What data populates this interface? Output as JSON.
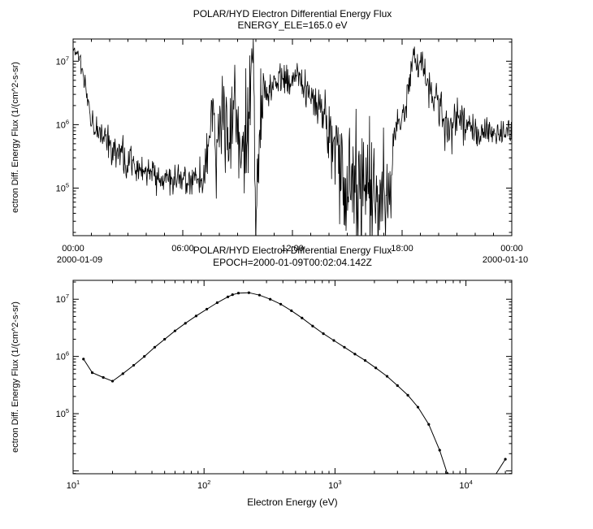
{
  "window": {
    "background": "#ffffff",
    "foreground": "#000000"
  },
  "chart_data": [
    {
      "type": "line",
      "id": "flux-time-series",
      "title": "POLAR/HYD  Electron Differential Energy Flux",
      "subtitle": "ENERGY_ELE=165.0 eV",
      "ylabel": "ectron Diff. Energy Flux (1/(cm^2-s-sr)",
      "x_axis": {
        "type": "time",
        "range_hours": [
          0,
          24
        ],
        "major_tick_hours": [
          0,
          6,
          12,
          18,
          24
        ],
        "minor_tick_step_hours": 1,
        "tick_labels": [
          "00:00",
          "06:00",
          "12:00",
          "18:00",
          "00:00"
        ],
        "date_labels": [
          {
            "text": "2000-01-09",
            "at_hour": 0
          },
          {
            "text": "2000-01-10",
            "at_hour": 24
          }
        ]
      },
      "y_axis": {
        "type": "log",
        "log10_range": [
          4.25,
          7.35
        ],
        "labeled_exponents": [
          5,
          6,
          7
        ]
      },
      "line_color": "#000000",
      "noise_seed": 20000109,
      "samples": 880,
      "keypoints_t_flux_sigma": [
        [
          0.0,
          15000000.0,
          0.04
        ],
        [
          0.35,
          11000000.0,
          0.05
        ],
        [
          0.55,
          6000000.0,
          0.1
        ],
        [
          0.75,
          2500000.0,
          0.12
        ],
        [
          1.0,
          1300000.0,
          0.12
        ],
        [
          1.5,
          700000.0,
          0.13
        ],
        [
          2.0,
          500000.0,
          0.14
        ],
        [
          2.5,
          350000.0,
          0.14
        ],
        [
          3.0,
          260000.0,
          0.14
        ],
        [
          3.5,
          210000.0,
          0.14
        ],
        [
          4.0,
          180000.0,
          0.13
        ],
        [
          4.5,
          160000.0,
          0.12
        ],
        [
          5.0,
          150000.0,
          0.12
        ],
        [
          5.5,
          135000.0,
          0.12
        ],
        [
          6.0,
          125000.0,
          0.12
        ],
        [
          6.5,
          120000.0,
          0.12
        ],
        [
          7.0,
          140000.0,
          0.16
        ],
        [
          7.3,
          250000.0,
          0.3
        ],
        [
          7.6,
          900000.0,
          0.4
        ],
        [
          7.9,
          300000.0,
          0.45
        ],
        [
          8.2,
          1800000.0,
          0.5
        ],
        [
          8.5,
          400000.0,
          0.5
        ],
        [
          8.8,
          3000000.0,
          0.5
        ],
        [
          9.0,
          600000.0,
          0.5
        ],
        [
          9.2,
          160000.0,
          0.4
        ],
        [
          9.45,
          250000.0,
          0.5
        ],
        [
          9.7,
          4000000.0,
          0.55
        ],
        [
          9.85,
          18000000.0,
          0.25
        ],
        [
          10.0,
          60000.0,
          0.55
        ],
        [
          10.25,
          1500000.0,
          0.3
        ],
        [
          10.5,
          3000000.0,
          0.15
        ],
        [
          11.0,
          4500000.0,
          0.12
        ],
        [
          11.5,
          5000000.0,
          0.12
        ],
        [
          11.9,
          4200000.0,
          0.12
        ],
        [
          12.2,
          6500000.0,
          0.1
        ],
        [
          12.5,
          4500000.0,
          0.12
        ],
        [
          13.0,
          3500000.0,
          0.14
        ],
        [
          13.4,
          2400000.0,
          0.18
        ],
        [
          13.8,
          1200000.0,
          0.25
        ],
        [
          14.2,
          550000.0,
          0.32
        ],
        [
          14.6,
          200000.0,
          0.4
        ],
        [
          15.0,
          90000.0,
          0.42
        ],
        [
          15.4,
          130000.0,
          0.45
        ],
        [
          15.8,
          55000.0,
          0.45
        ],
        [
          16.2,
          90000.0,
          0.45
        ],
        [
          16.6,
          45000.0,
          0.4
        ],
        [
          17.0,
          110000.0,
          0.4
        ],
        [
          17.35,
          60000.0,
          0.3
        ],
        [
          17.55,
          800000.0,
          0.18
        ],
        [
          17.9,
          1100000.0,
          0.14
        ],
        [
          18.2,
          2000000.0,
          0.14
        ],
        [
          18.45,
          6000000.0,
          0.12
        ],
        [
          18.65,
          13000000.0,
          0.08
        ],
        [
          18.85,
          8000000.0,
          0.14
        ],
        [
          19.05,
          11000000.0,
          0.1
        ],
        [
          19.3,
          5500000.0,
          0.15
        ],
        [
          19.6,
          3500000.0,
          0.18
        ],
        [
          19.9,
          2200000.0,
          0.2
        ],
        [
          20.3,
          1100000.0,
          0.2
        ],
        [
          20.7,
          800000.0,
          0.2
        ],
        [
          21.1,
          1400000.0,
          0.18
        ],
        [
          21.6,
          900000.0,
          0.16
        ],
        [
          22.1,
          700000.0,
          0.14
        ],
        [
          22.6,
          850000.0,
          0.13
        ],
        [
          23.1,
          650000.0,
          0.13
        ],
        [
          23.6,
          800000.0,
          0.11
        ],
        [
          24.0,
          700000.0,
          0.1
        ]
      ]
    },
    {
      "type": "line",
      "id": "energy-spectrum",
      "title": "POLAR/HYD  Electron Differential Energy Flux",
      "subtitle": "EPOCH=2000-01-09T00:02:04.142Z",
      "xlabel": "Electron Energy (eV)",
      "ylabel": "ectron Diff. Energy Flux (1/(cm^2-s-sr)",
      "x_axis": {
        "type": "log",
        "log10_range": [
          1,
          4.35
        ],
        "labeled_exponents": [
          1,
          2,
          3,
          4
        ]
      },
      "y_axis": {
        "type": "log",
        "log10_range": [
          3.95,
          7.33
        ],
        "labeled_exponents": [
          5,
          6,
          7
        ]
      },
      "line_color": "#000000",
      "points_ev_flux": [
        [
          12,
          900000.0
        ],
        [
          14,
          520000.0
        ],
        [
          17,
          430000.0
        ],
        [
          20,
          370000.0
        ],
        [
          24,
          500000.0
        ],
        [
          29,
          700000.0
        ],
        [
          35,
          1000000.0
        ],
        [
          42,
          1450000.0
        ],
        [
          50,
          2000000.0
        ],
        [
          60,
          2800000.0
        ],
        [
          72,
          3800000.0
        ],
        [
          87,
          5100000.0
        ],
        [
          105,
          6700000.0
        ],
        [
          126,
          8700000.0
        ],
        [
          152,
          11000000.0
        ],
        [
          165,
          12000000.0
        ],
        [
          183,
          12800000.0
        ],
        [
          220,
          13000000.0
        ],
        [
          265,
          11800000.0
        ],
        [
          320,
          10000000.0
        ],
        [
          385,
          8200000.0
        ],
        [
          465,
          6300000.0
        ],
        [
          560,
          4700000.0
        ],
        [
          675,
          3400000.0
        ],
        [
          815,
          2500000.0
        ],
        [
          980,
          1900000.0
        ],
        [
          1180,
          1450000.0
        ],
        [
          1420,
          1100000.0
        ],
        [
          1700,
          850000.0
        ],
        [
          2050,
          630000.0
        ],
        [
          2500,
          450000.0
        ],
        [
          3000,
          310000.0
        ],
        [
          3600,
          210000.0
        ],
        [
          4300,
          130000.0
        ],
        [
          5200,
          65000.0
        ],
        [
          6300,
          23000.0
        ],
        [
          7200,
          9000.0
        ]
      ],
      "tail_points_ev_flux": [
        [
          16500,
          8000.0
        ],
        [
          20000,
          16000.0
        ]
      ]
    }
  ]
}
